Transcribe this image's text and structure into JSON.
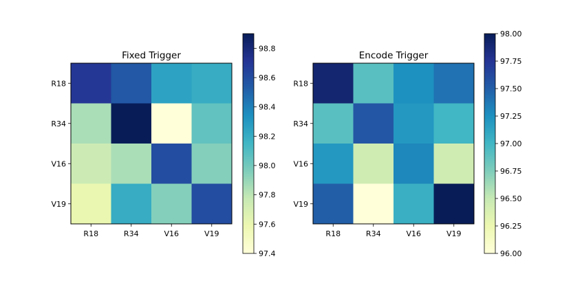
{
  "chart_data": [
    {
      "type": "heatmap",
      "title": "Fixed Trigger",
      "x_labels": [
        "R18",
        "R34",
        "V16",
        "V19"
      ],
      "y_labels": [
        "R18",
        "R34",
        "V16",
        "V19"
      ],
      "values": [
        [
          98.7,
          98.55,
          98.25,
          98.2
        ],
        [
          97.85,
          98.9,
          97.4,
          98.05
        ],
        [
          97.75,
          97.85,
          98.6,
          97.95
        ],
        [
          97.6,
          98.2,
          97.95,
          98.6
        ]
      ],
      "colorbar": {
        "vmin": 97.4,
        "vmax": 98.9,
        "ticks": [
          97.4,
          97.6,
          97.8,
          98.0,
          98.2,
          98.4,
          98.6,
          98.8
        ],
        "tick_labels": [
          "97.4",
          "97.6",
          "97.8",
          "98.0",
          "98.2",
          "98.4",
          "98.6",
          "98.8"
        ]
      },
      "colormap": "YlGnBu"
    },
    {
      "type": "heatmap",
      "title": "Encode Trigger",
      "x_labels": [
        "R18",
        "R34",
        "V16",
        "V19"
      ],
      "y_labels": [
        "R18",
        "R34",
        "V16",
        "V19"
      ],
      "values": [
        [
          97.9,
          96.9,
          97.25,
          97.4
        ],
        [
          96.9,
          97.55,
          97.2,
          97.0
        ],
        [
          97.2,
          96.45,
          97.3,
          96.45
        ],
        [
          97.5,
          96.0,
          97.05,
          98.0
        ]
      ],
      "colorbar": {
        "vmin": 96.0,
        "vmax": 98.0,
        "ticks": [
          96.0,
          96.25,
          96.5,
          96.75,
          97.0,
          97.25,
          97.5,
          97.75,
          98.0
        ],
        "tick_labels": [
          "96.00",
          "96.25",
          "96.50",
          "96.75",
          "97.00",
          "97.25",
          "97.50",
          "97.75",
          "98.00"
        ]
      },
      "colormap": "YlGnBu"
    }
  ]
}
